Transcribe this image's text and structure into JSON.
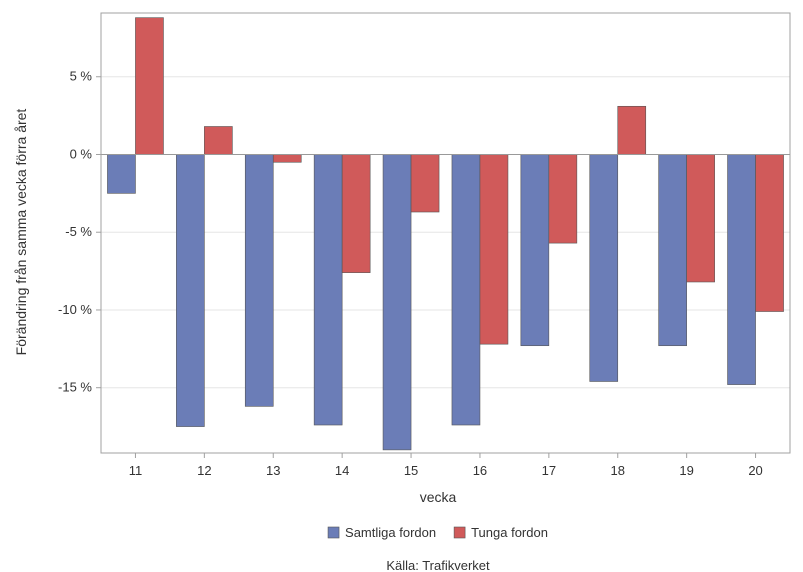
{
  "chart_data": {
    "type": "bar",
    "xlabel": "vecka",
    "ylabel": "Förändring från samma vecka förra året",
    "categories": [
      "11",
      "12",
      "13",
      "14",
      "15",
      "16",
      "17",
      "18",
      "19",
      "20"
    ],
    "series": [
      {
        "name": "Samtliga fordon",
        "color": "#6b7db7",
        "values": [
          -2.5,
          -17.5,
          -16.2,
          -17.4,
          -19.0,
          -17.4,
          -12.3,
          -14.6,
          -12.3,
          -14.8
        ]
      },
      {
        "name": "Tunga fordon",
        "color": "#d05a5a",
        "values": [
          8.8,
          1.8,
          -0.5,
          -7.6,
          -3.7,
          -12.2,
          -5.7,
          3.1,
          -8.2,
          -10.1
        ]
      }
    ],
    "yticks": [
      5,
      0,
      -5,
      -10,
      -15
    ],
    "ytick_labels": [
      "5 %",
      "0 %",
      "-5 %",
      "-10 %",
      "-15 %"
    ],
    "ylim": [
      -19.2,
      9.1
    ],
    "grid": true,
    "legend_position": "bottom",
    "source": "Källa: Trafikverket"
  }
}
